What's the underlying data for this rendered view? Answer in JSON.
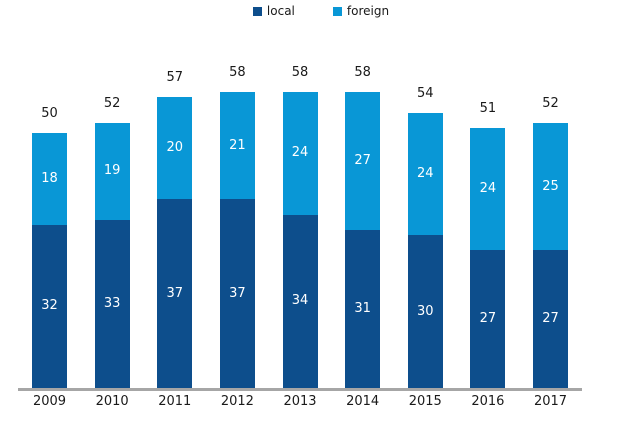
{
  "chart_data": {
    "type": "bar",
    "stacked": true,
    "title": "",
    "xlabel": "",
    "ylabel": "",
    "grid": false,
    "legend_position": "top-center",
    "ylim": [
      0,
      58
    ],
    "categories": [
      "2009",
      "2010",
      "2011",
      "2012",
      "2013",
      "2014",
      "2015",
      "2016",
      "2017"
    ],
    "series": [
      {
        "name": "local",
        "color": "#0d4e8c",
        "values": [
          32,
          33,
          37,
          37,
          34,
          31,
          30,
          27,
          27
        ]
      },
      {
        "name": "foreign",
        "color": "#0997d6",
        "values": [
          18,
          19,
          20,
          21,
          24,
          27,
          24,
          24,
          25
        ]
      }
    ],
    "totals": [
      50,
      52,
      57,
      58,
      58,
      58,
      54,
      51,
      52
    ],
    "colors": {
      "segment_value_label": "#ffffff",
      "total_label": "#1a1a1a",
      "tick_label": "#1a1a1a",
      "axis_line": "#a6a6a6",
      "background": "#ffffff"
    }
  }
}
